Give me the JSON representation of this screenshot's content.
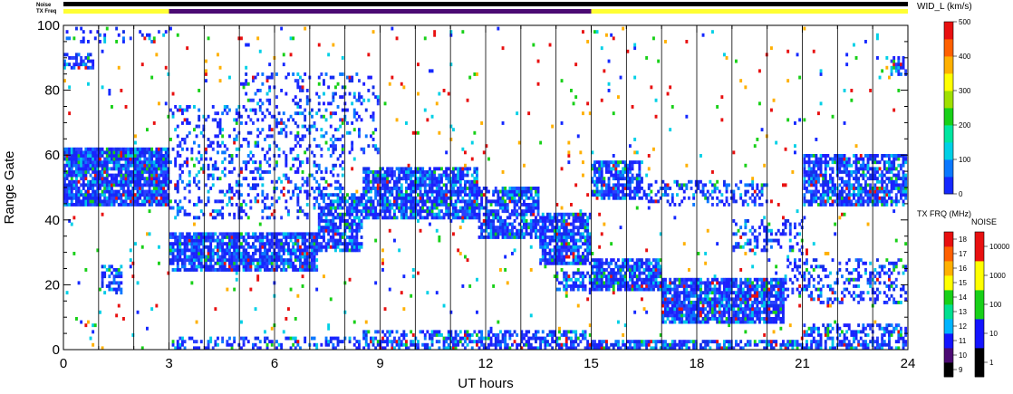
{
  "chart_data": {
    "type": "heatmap",
    "xlabel": "UT hours",
    "ylabel": "Range Gate",
    "xlim": [
      0,
      24
    ],
    "ylim": [
      0,
      100
    ],
    "x_ticks": [
      0,
      3,
      6,
      9,
      12,
      15,
      18,
      21,
      24
    ],
    "y_ticks": [
      0,
      20,
      40,
      60,
      80,
      100
    ],
    "grid": "vertical lines at hour marks",
    "status_bars": {
      "noise_label": "Noise",
      "freq_label": "TX Freq",
      "noise_color": "#000000",
      "freq_segments": [
        {
          "start": 0,
          "end": 3,
          "color": "#ffff33"
        },
        {
          "start": 3,
          "end": 15,
          "color": "#4b0a73"
        },
        {
          "start": 15,
          "end": 24,
          "color": "#ffff33"
        }
      ]
    },
    "colorbar_width": {
      "title": "WID_L (km/s)",
      "ticks": [
        "0",
        "100",
        "200",
        "300",
        "400",
        "500"
      ],
      "range": [
        0,
        500
      ],
      "colors": [
        "#1428ff",
        "#0a78ff",
        "#00d0e6",
        "#00e6a0",
        "#18d018",
        "#a0e000",
        "#ffff00",
        "#ffb000",
        "#ff6000",
        "#e81010"
      ]
    },
    "colorbar_freq": {
      "title": "TX FRQ (MHz)",
      "ticks": [
        "9",
        "10",
        "11",
        "12",
        "13",
        "14",
        "15",
        "16",
        "17",
        "18"
      ],
      "colors": [
        "#000000",
        "#4b0a73",
        "#1414ff",
        "#00b4ff",
        "#00e090",
        "#18d018",
        "#ffff00",
        "#ffb000",
        "#ff6000",
        "#e81010"
      ]
    },
    "colorbar_noise": {
      "title": "NOISE",
      "ticks": [
        "1",
        "10",
        "100",
        "1000",
        "10000"
      ],
      "colors": [
        "#000000",
        "#1414ff",
        "#18d018",
        "#ffff00",
        "#e81010"
      ]
    },
    "scatter_regions": [
      {
        "t0": 0,
        "t1": 3,
        "r0": 44,
        "r1": 62,
        "density": 0.9
      },
      {
        "t0": 0,
        "t1": 0.9,
        "r0": 86,
        "r1": 92,
        "density": 0.6
      },
      {
        "t0": 0,
        "t1": 3,
        "r0": 95,
        "r1": 100,
        "density": 0.2
      },
      {
        "t0": 1.1,
        "t1": 1.7,
        "r0": 17,
        "r1": 26,
        "density": 0.6
      },
      {
        "t0": 3,
        "t1": 7.2,
        "r0": 24,
        "r1": 36,
        "density": 0.85
      },
      {
        "t0": 7.2,
        "t1": 8.5,
        "r0": 30,
        "r1": 48,
        "density": 0.75
      },
      {
        "t0": 8.5,
        "t1": 11.8,
        "r0": 40,
        "r1": 56,
        "density": 0.8
      },
      {
        "t0": 11.8,
        "t1": 13.5,
        "r0": 34,
        "r1": 50,
        "density": 0.75
      },
      {
        "t0": 13.5,
        "t1": 15,
        "r0": 26,
        "r1": 42,
        "density": 0.8
      },
      {
        "t0": 3,
        "t1": 8,
        "r0": 40,
        "r1": 75,
        "density": 0.25
      },
      {
        "t0": 5,
        "t1": 9,
        "r0": 60,
        "r1": 85,
        "density": 0.2
      },
      {
        "t0": 3,
        "t1": 15,
        "r0": 0,
        "r1": 4,
        "density": 0.35
      },
      {
        "t0": 8.5,
        "t1": 15,
        "r0": 0,
        "r1": 6,
        "density": 0.55
      },
      {
        "t0": 14,
        "t1": 15,
        "r0": 18,
        "r1": 24,
        "density": 0.6
      },
      {
        "t0": 15,
        "t1": 16.5,
        "r0": 46,
        "r1": 58,
        "density": 0.7
      },
      {
        "t0": 16.5,
        "t1": 20,
        "r0": 44,
        "r1": 52,
        "density": 0.35
      },
      {
        "t0": 15,
        "t1": 17,
        "r0": 18,
        "r1": 28,
        "density": 0.85
      },
      {
        "t0": 17,
        "t1": 20.5,
        "r0": 8,
        "r1": 22,
        "density": 0.85
      },
      {
        "t0": 20.5,
        "t1": 24,
        "r0": 14,
        "r1": 28,
        "density": 0.3
      },
      {
        "t0": 19,
        "t1": 21,
        "r0": 30,
        "r1": 40,
        "density": 0.35
      },
      {
        "t0": 21,
        "t1": 24,
        "r0": 44,
        "r1": 60,
        "density": 0.75
      },
      {
        "t0": 15,
        "t1": 24,
        "r0": 0,
        "r1": 3,
        "density": 0.7
      },
      {
        "t0": 21,
        "t1": 24,
        "r0": 3,
        "r1": 8,
        "density": 0.45
      },
      {
        "t0": 23.5,
        "t1": 24,
        "r0": 84,
        "r1": 90,
        "density": 0.6
      },
      {
        "t0": 0,
        "t1": 24,
        "r0": 0,
        "r1": 100,
        "density": 0.02
      }
    ]
  }
}
